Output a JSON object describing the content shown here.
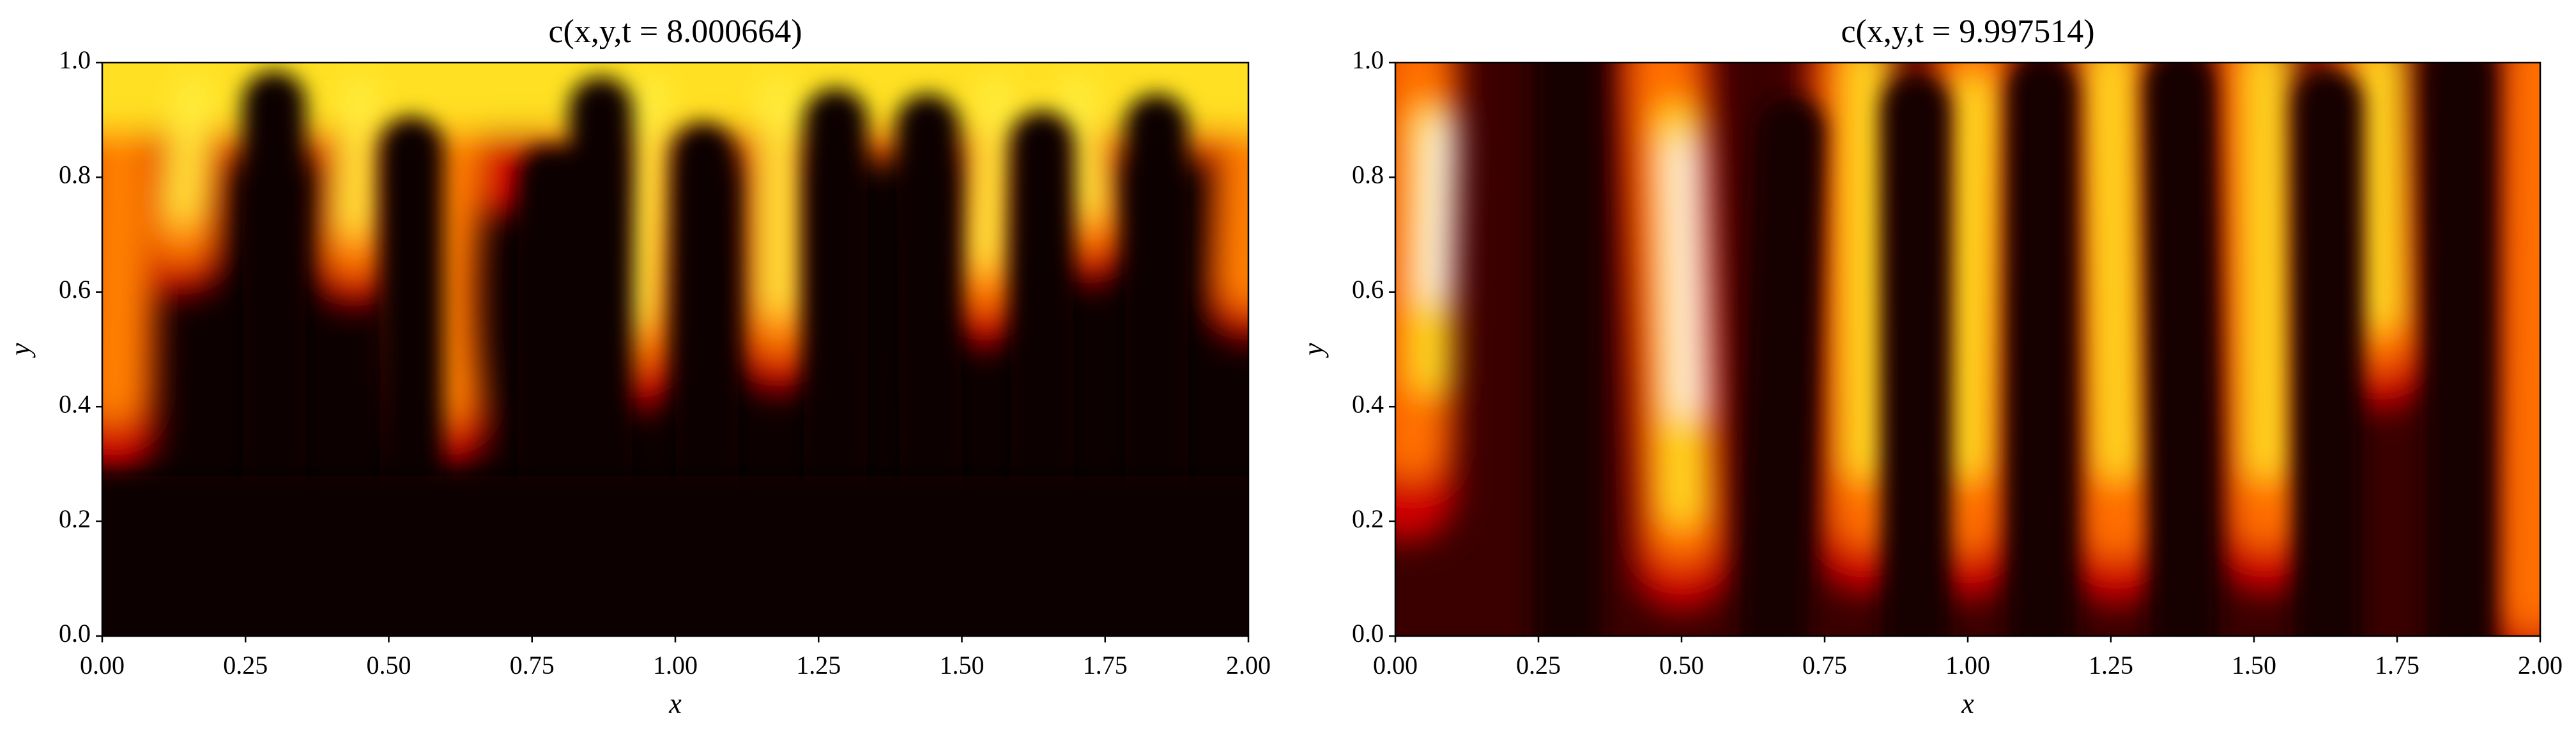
{
  "chart_data": [
    {
      "type": "heatmap",
      "title": "c(x,y,t = 8.000664)",
      "x_label": "x",
      "y_label": "y",
      "xlim": [
        0,
        2
      ],
      "ylim": [
        0,
        1
      ],
      "xticks": [
        {
          "value": 0,
          "label": "0.00"
        },
        {
          "value": 0.25,
          "label": "0.25"
        },
        {
          "value": 0.5,
          "label": "0.50"
        },
        {
          "value": 0.75,
          "label": "0.75"
        },
        {
          "value": 1,
          "label": "1.00"
        },
        {
          "value": 1.25,
          "label": "1.25"
        },
        {
          "value": 1.5,
          "label": "1.50"
        },
        {
          "value": 1.75,
          "label": "1.75"
        },
        {
          "value": 2,
          "label": "2.00"
        }
      ],
      "yticks": [
        {
          "value": 0,
          "label": "0.0"
        },
        {
          "value": 0.2,
          "label": "0.2"
        },
        {
          "value": 0.4,
          "label": "0.4"
        },
        {
          "value": 0.6,
          "label": "0.6"
        },
        {
          "value": 0.8,
          "label": "0.8"
        },
        {
          "value": 1,
          "label": "1.0"
        }
      ]
    },
    {
      "type": "heatmap",
      "title": "c(x,y,t = 9.997514)",
      "x_label": "x",
      "y_label": "y",
      "xlim": [
        0,
        2
      ],
      "ylim": [
        0,
        1
      ],
      "xticks": [
        {
          "value": 0,
          "label": "0.00"
        },
        {
          "value": 0.25,
          "label": "0.25"
        },
        {
          "value": 0.5,
          "label": "0.50"
        },
        {
          "value": 0.75,
          "label": "0.75"
        },
        {
          "value": 1,
          "label": "1.00"
        },
        {
          "value": 1.25,
          "label": "1.25"
        },
        {
          "value": 1.5,
          "label": "1.50"
        },
        {
          "value": 1.75,
          "label": "1.75"
        },
        {
          "value": 2,
          "label": "2.00"
        }
      ],
      "yticks": [
        {
          "value": 0,
          "label": "0.0"
        },
        {
          "value": 0.2,
          "label": "0.2"
        },
        {
          "value": 0.4,
          "label": "0.4"
        },
        {
          "value": 0.6,
          "label": "0.6"
        },
        {
          "value": 0.8,
          "label": "0.8"
        },
        {
          "value": 1,
          "label": "1.0"
        }
      ]
    }
  ]
}
